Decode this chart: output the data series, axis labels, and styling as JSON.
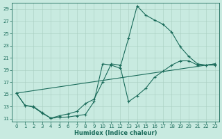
{
  "title": "",
  "xlabel": "Humidex (Indice chaleur)",
  "bg_color": "#c8eae0",
  "grid_color": "#a8cfc0",
  "line_color": "#1a6b5a",
  "xlim": [
    -0.5,
    23.5
  ],
  "ylim": [
    10.5,
    30.0
  ],
  "xticks": [
    0,
    1,
    2,
    3,
    4,
    5,
    6,
    7,
    8,
    9,
    10,
    11,
    12,
    13,
    14,
    15,
    16,
    17,
    18,
    19,
    20,
    21,
    22,
    23
  ],
  "yticks": [
    11,
    13,
    15,
    17,
    19,
    21,
    23,
    25,
    27,
    29
  ],
  "line1_x": [
    0,
    1,
    2,
    3,
    4,
    5,
    6,
    7,
    8,
    9,
    10,
    11,
    12,
    13,
    14,
    15,
    16,
    17,
    18,
    19,
    20,
    21,
    22,
    23
  ],
  "line1_y": [
    15.2,
    13.2,
    13.0,
    12.0,
    11.1,
    11.2,
    11.3,
    11.5,
    11.7,
    13.8,
    20.0,
    19.8,
    19.3,
    24.2,
    29.5,
    28.0,
    27.2,
    26.5,
    25.2,
    22.8,
    21.2,
    20.0,
    19.8,
    19.8
  ],
  "line2_x": [
    0,
    1,
    2,
    3,
    4,
    5,
    6,
    7,
    8,
    9,
    10,
    11,
    12,
    13,
    14,
    15,
    16,
    17,
    18,
    19,
    20,
    21,
    22,
    23
  ],
  "line2_y": [
    15.2,
    13.2,
    12.9,
    11.9,
    11.1,
    11.5,
    11.8,
    12.2,
    13.5,
    14.2,
    17.0,
    20.0,
    19.8,
    13.8,
    14.8,
    16.0,
    17.8,
    18.8,
    19.8,
    20.5,
    20.5,
    19.8,
    19.8,
    20.0
  ],
  "line3_x": [
    0,
    23
  ],
  "line3_y": [
    15.2,
    20.0
  ]
}
